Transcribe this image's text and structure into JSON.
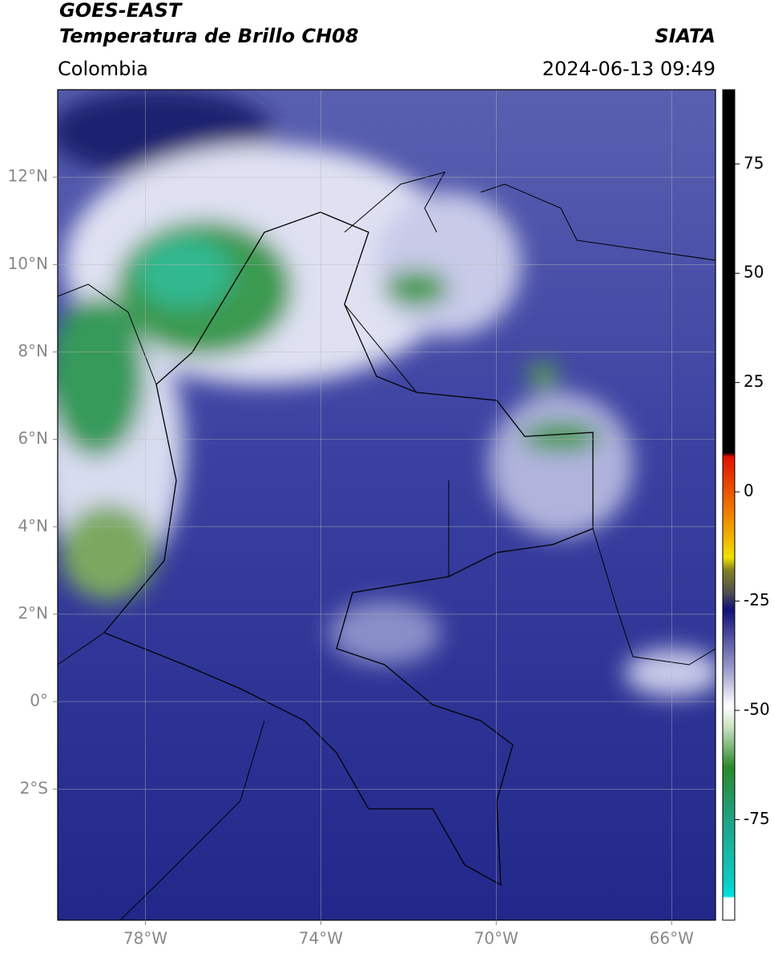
{
  "chart_data": {
    "type": "map",
    "title": "GOES-EAST",
    "subtitle": "Temperatura de Brillo CH08",
    "source": "SIATA",
    "region": "Colombia",
    "datetime": "2024-06-13 09:49",
    "xlim": [
      -80,
      -65
    ],
    "ylim": [
      -5,
      14
    ],
    "xticks": [
      {
        "value": -78,
        "label": "78°W"
      },
      {
        "value": -74,
        "label": "74°W"
      },
      {
        "value": -70,
        "label": "70°W"
      },
      {
        "value": -66,
        "label": "66°W"
      }
    ],
    "yticks": [
      {
        "value": 12,
        "label": "12°N"
      },
      {
        "value": 10,
        "label": "10°N"
      },
      {
        "value": 8,
        "label": "8°N"
      },
      {
        "value": 6,
        "label": "6°N"
      },
      {
        "value": 4,
        "label": "4°N"
      },
      {
        "value": 2,
        "label": "2°N"
      },
      {
        "value": 0,
        "label": "0°"
      },
      {
        "value": -2,
        "label": "2°S"
      }
    ],
    "grid": true,
    "colorbar": {
      "clim": [
        -98,
        92
      ],
      "ticks": [
        75,
        50,
        25,
        0,
        -25,
        -50,
        -75
      ],
      "colorscale": [
        {
          "value": -98,
          "color": "#ffffff"
        },
        {
          "value": -93,
          "color": "#ffffff"
        },
        {
          "value": -92.5,
          "color": "#00e0e0"
        },
        {
          "value": -88.5,
          "color": "#10c8c0"
        },
        {
          "value": -74,
          "color": "#20a080"
        },
        {
          "value": -63,
          "color": "#2a8a2a"
        },
        {
          "value": -54,
          "color": "#c8e0c0"
        },
        {
          "value": -49,
          "color": "#ffffff"
        },
        {
          "value": -41,
          "color": "#a0a0d0"
        },
        {
          "value": -27,
          "color": "#10107a"
        },
        {
          "value": -23,
          "color": "#505050"
        },
        {
          "value": -18,
          "color": "#808020"
        },
        {
          "value": -15,
          "color": "#f0e000"
        },
        {
          "value": -5,
          "color": "#f08000"
        },
        {
          "value": 8,
          "color": "#e01000"
        },
        {
          "value": 9,
          "color": "#000000"
        },
        {
          "value": 92,
          "color": "#000000"
        }
      ]
    }
  }
}
